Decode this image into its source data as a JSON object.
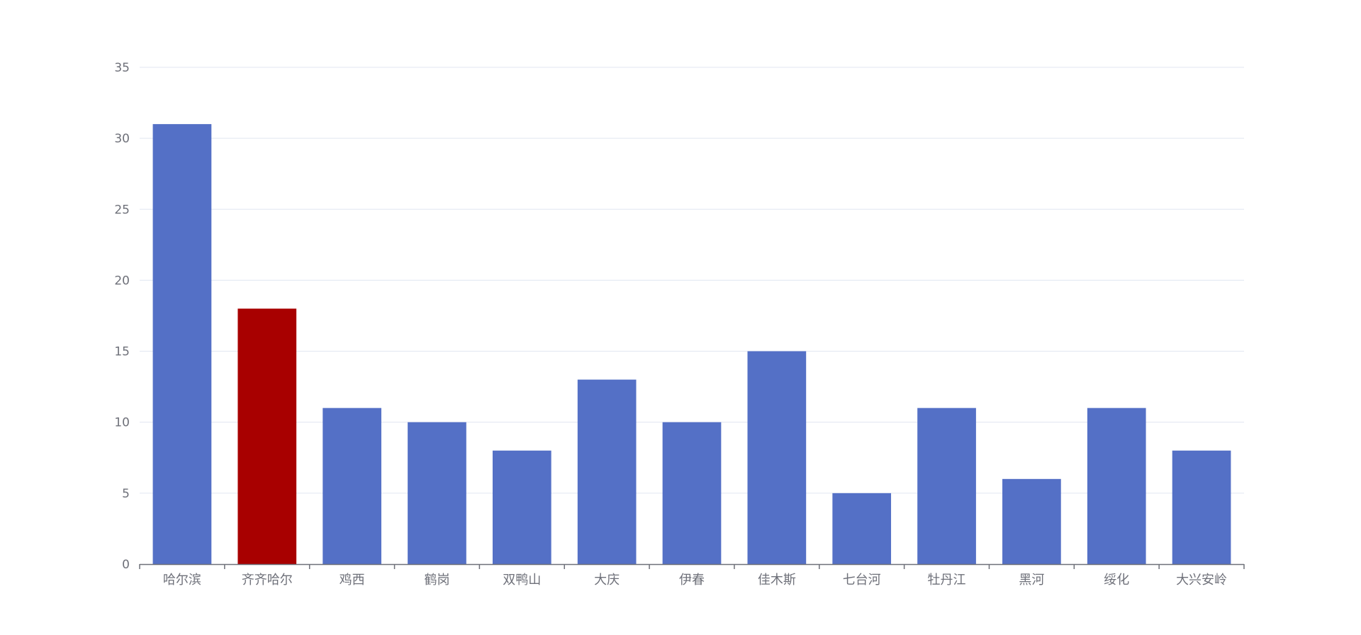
{
  "chart_data": {
    "type": "bar",
    "categories": [
      "哈尔滨",
      "齐齐哈尔",
      "鸡西",
      "鹤岗",
      "双鸭山",
      "大庆",
      "伊春",
      "佳木斯",
      "七台河",
      "牡丹江",
      "黑河",
      "绥化",
      "大兴安岭"
    ],
    "values": [
      31,
      18,
      11,
      10,
      8,
      13,
      10,
      15,
      5,
      11,
      6,
      11,
      8
    ],
    "highlight_index": 1,
    "ylim": [
      0,
      35
    ],
    "yticks": [
      0,
      5,
      10,
      15,
      20,
      25,
      30,
      35
    ],
    "grid": true,
    "title": "",
    "xlabel": "",
    "ylabel": ""
  },
  "colors": {
    "bar": "#5470c6",
    "highlight_bar": "#a80000",
    "grid": "#e0e6f1",
    "axis": "#6e7079",
    "label": "#6e7079"
  }
}
